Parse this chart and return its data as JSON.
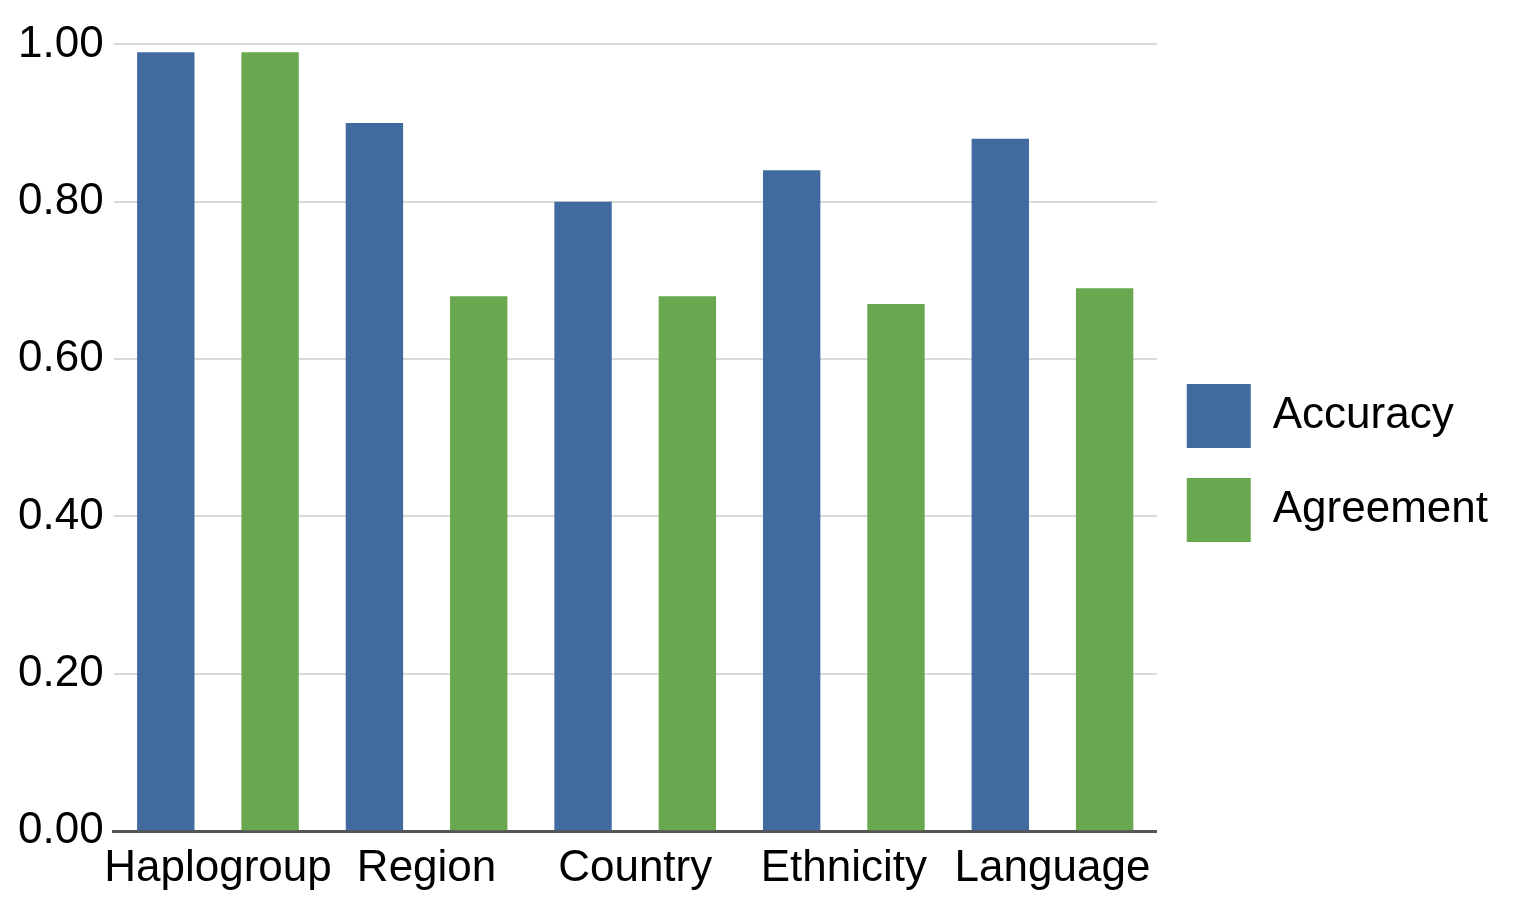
{
  "chart_data": {
    "type": "bar",
    "categories": [
      "Haplogroup",
      "Region",
      "Country",
      "Ethnicity",
      "Language"
    ],
    "series": [
      {
        "name": "Accuracy",
        "color": "#416a9f",
        "values": [
          0.99,
          0.9,
          0.8,
          0.84,
          0.88
        ]
      },
      {
        "name": "Agreement",
        "color": "#6aa84f",
        "values": [
          0.99,
          0.68,
          0.68,
          0.67,
          0.69
        ]
      }
    ],
    "ylim": [
      0,
      1
    ],
    "yticks": [
      {
        "value": 0,
        "label": "0.00"
      },
      {
        "value": 0.2,
        "label": "0.20"
      },
      {
        "value": 0.4,
        "label": "0.40"
      },
      {
        "value": 0.6,
        "label": "0.60"
      },
      {
        "value": 0.8,
        "label": "0.80"
      },
      {
        "value": 1,
        "label": "1.00"
      }
    ],
    "grid": "y",
    "legend": "right"
  }
}
